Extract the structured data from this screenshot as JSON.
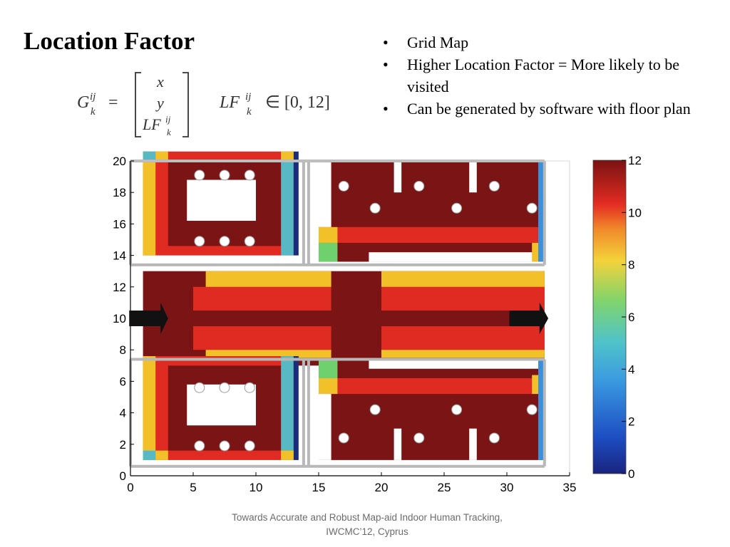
{
  "slide": {
    "title": "Location Factor",
    "bullets": [
      "Grid Map",
      "Higher Location Factor = More likely to be visited",
      "Can be generated by software with floor plan"
    ],
    "formula": {
      "matrix_lhs": "G",
      "matrix_lhs_sup": "ij",
      "matrix_lhs_sub": "k",
      "equals": "=",
      "vector": [
        "x",
        "y",
        "LF"
      ],
      "lf_symbol": "LF",
      "lf_sup": "ij",
      "lf_sub": "k",
      "range_text": "∈ [0, 12]"
    },
    "footer": {
      "line1": "Towards Accurate and Robust Map-aid Indoor Human Tracking,",
      "line2": "IWCMC’12, Cyprus"
    }
  },
  "chart_data": {
    "type": "heatmap",
    "x_ticks": [
      "0",
      "5",
      "10",
      "15",
      "20",
      "25",
      "30",
      "35"
    ],
    "y_ticks": [
      "0",
      "2",
      "4",
      "6",
      "8",
      "10",
      "12",
      "14",
      "16",
      "18",
      "20"
    ],
    "xlim": [
      0,
      35
    ],
    "ylim": [
      0,
      20
    ],
    "colorbar": {
      "ticks": [
        "0",
        "2",
        "4",
        "6",
        "8",
        "10",
        "12"
      ],
      "range": [
        0,
        12
      ],
      "colormap": "jet"
    },
    "arrows": [
      "entrance-arrow",
      "exit-arrow"
    ],
    "colors": {
      "lf12": "#7b1414",
      "lf10": "#e02b22",
      "lf8": "#f2c12a",
      "lf6": "#6fd16e",
      "lf4": "#57b9c4",
      "lf2": "#3c8fd9",
      "lf0": "#1a2c7a"
    }
  }
}
